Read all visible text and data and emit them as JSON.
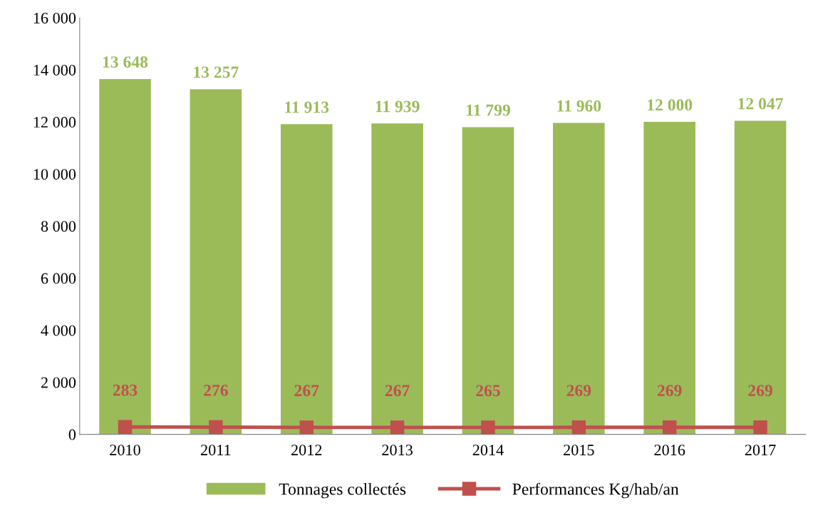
{
  "chart_data": {
    "type": "bar",
    "categories": [
      "2010",
      "2011",
      "2012",
      "2013",
      "2014",
      "2015",
      "2016",
      "2017"
    ],
    "series": [
      {
        "name": "Tonnages collectés",
        "color": "#9bbb59",
        "values": [
          13648,
          13257,
          11913,
          11939,
          11799,
          11960,
          12000,
          12047
        ],
        "value_labels": [
          "13 648",
          "13 257",
          "11 913",
          "11 939",
          "11 799",
          "11 960",
          "12 000",
          "12 047"
        ]
      },
      {
        "name": "Performances Kg/hab/an",
        "type": "line",
        "color": "#c0504d",
        "marker": "square",
        "values": [
          283,
          276,
          267,
          267,
          265,
          269,
          269,
          269
        ],
        "value_labels": [
          "283",
          "276",
          "267",
          "267",
          "265",
          "269",
          "269",
          "269"
        ]
      }
    ],
    "ylim": [
      0,
      16000
    ],
    "yticks": [
      {
        "value": 0,
        "label": "0"
      },
      {
        "value": 2000,
        "label": "2 000"
      },
      {
        "value": 4000,
        "label": "4 000"
      },
      {
        "value": 6000,
        "label": "6 000"
      },
      {
        "value": 8000,
        "label": "8 000"
      },
      {
        "value": 10000,
        "label": "10 000"
      },
      {
        "value": 12000,
        "label": "12 000"
      },
      {
        "value": 14000,
        "label": "14 000"
      },
      {
        "value": 16000,
        "label": "16 000"
      }
    ],
    "grid": false,
    "legend": "bottom"
  }
}
